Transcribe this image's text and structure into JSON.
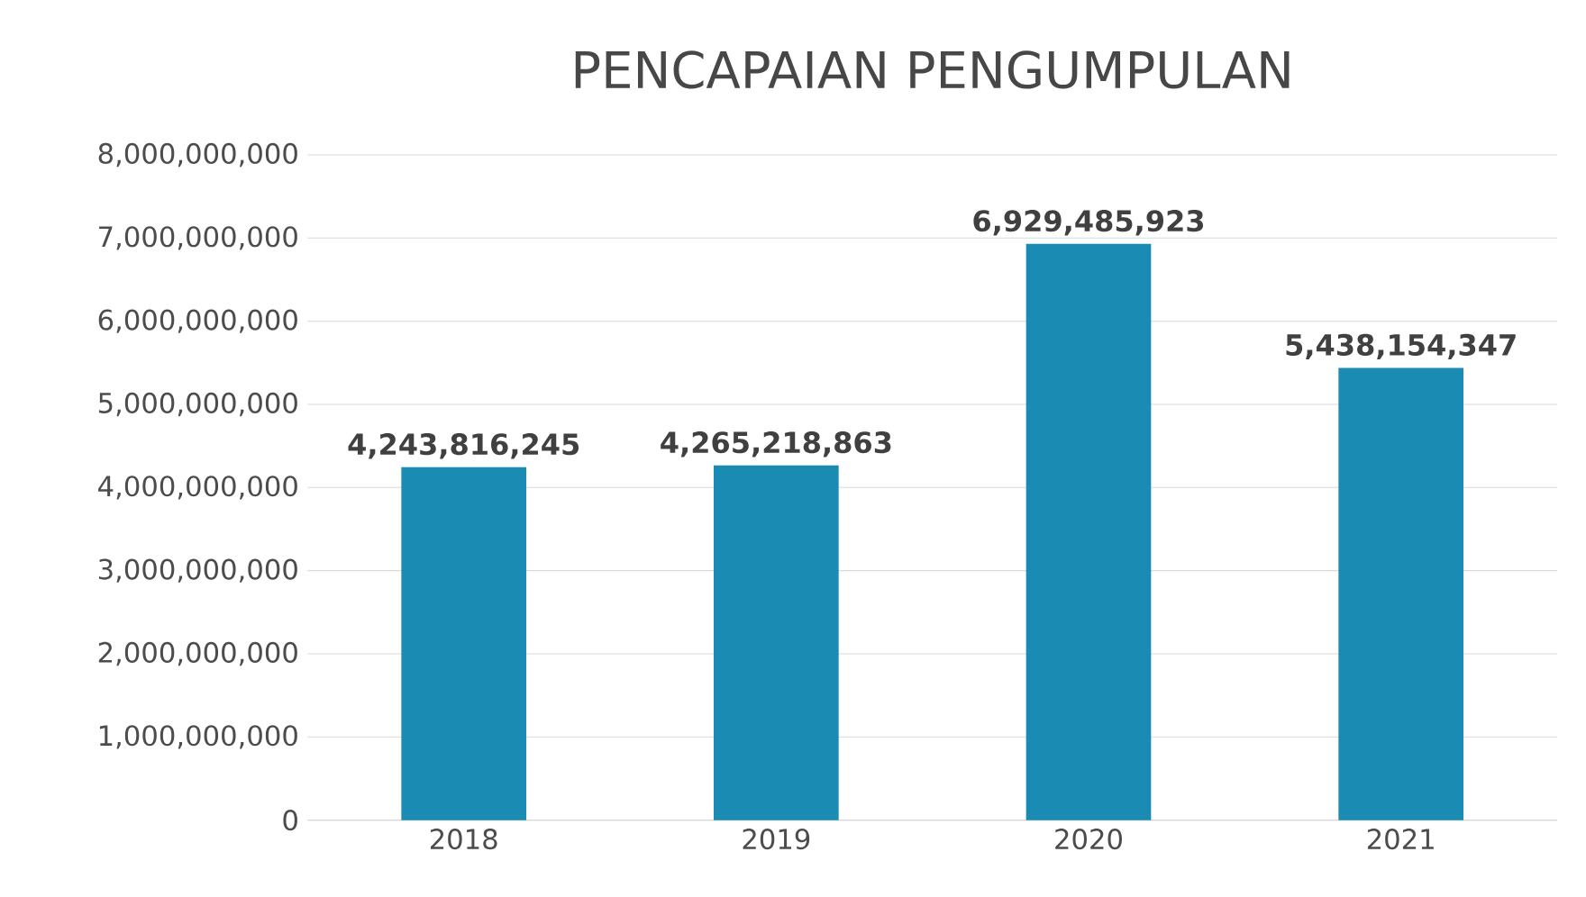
{
  "chart_data": {
    "type": "bar",
    "title": "PENCAPAIAN PENGUMPULAN",
    "categories": [
      "2018",
      "2019",
      "2020",
      "2021"
    ],
    "values": [
      4243816245,
      4265218863,
      6929485923,
      5438154347
    ],
    "value_labels": [
      "4,243,816,245",
      "4,265,218,863",
      "6,929,485,923",
      "5,438,154,347"
    ],
    "color": "#1a8cb3",
    "ylim": [
      0,
      8000000000
    ],
    "yticks": [
      0,
      {
        "value": 1000000000,
        "label": "1,000,000,000"
      },
      {
        "value": 2000000000,
        "label": "2,000,000,000"
      },
      {
        "value": 3000000000,
        "label": "3,000,000,000"
      },
      {
        "value": 4000000000,
        "label": "4,000,000,000"
      },
      {
        "value": 5000000000,
        "label": "5,000,000,000"
      },
      {
        "value": 6000000000,
        "label": "6,000,000,000"
      },
      {
        "value": 7000000000,
        "label": "7,000,000,000"
      },
      {
        "value": 8000000000,
        "label": "8,000,000,000"
      }
    ],
    "grid": "y"
  }
}
